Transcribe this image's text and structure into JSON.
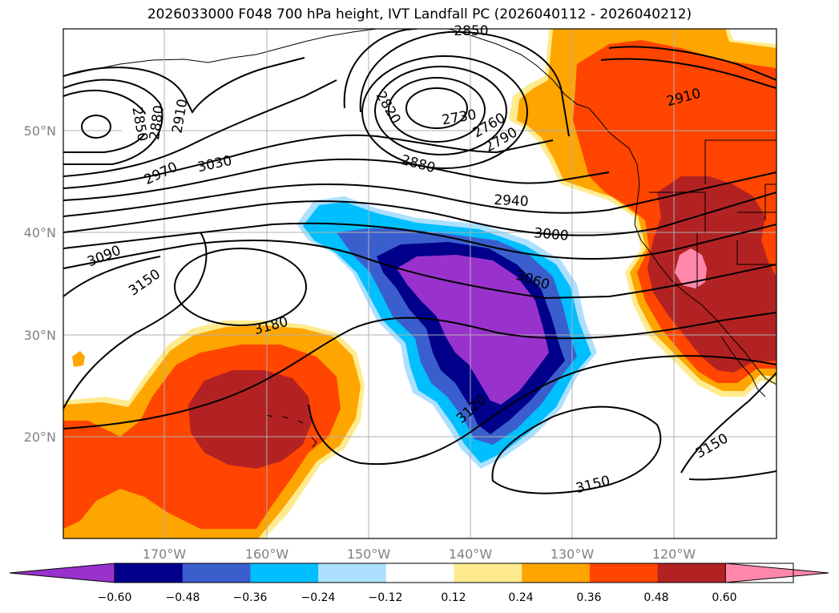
{
  "title": "2026033000 F048 700 hPa height, IVT Landfall PC (2026040112 - 2026040212)",
  "map": {
    "lat_labels": [
      "50°N",
      "40°N",
      "30°N",
      "20°N"
    ],
    "lon_labels": [
      "170°W",
      "160°W",
      "150°W",
      "140°W",
      "130°W",
      "120°W"
    ],
    "grid": true
  },
  "contour_labels": [
    "2850",
    "2880",
    "2910",
    "2970",
    "3030",
    "3090",
    "3150",
    "3180",
    "2820",
    "2730",
    "2760",
    "2790",
    "2880",
    "2940",
    "3000",
    "3060",
    "3120",
    "3150",
    "2910",
    "3150",
    "2850"
  ],
  "colorbar": {
    "ticks": [
      "−0.60",
      "−0.48",
      "−0.36",
      "−0.24",
      "−0.12",
      "0.12",
      "0.24",
      "0.36",
      "0.48",
      "0.60"
    ],
    "colors": [
      "#9932CC",
      "#00008B",
      "#3A5FCD",
      "#00BFFF",
      "#ADE0FF",
      "#FFFFFF",
      "#FFEB8F",
      "#FFA500",
      "#FF4500",
      "#B22222",
      "#FF88AA"
    ]
  }
}
